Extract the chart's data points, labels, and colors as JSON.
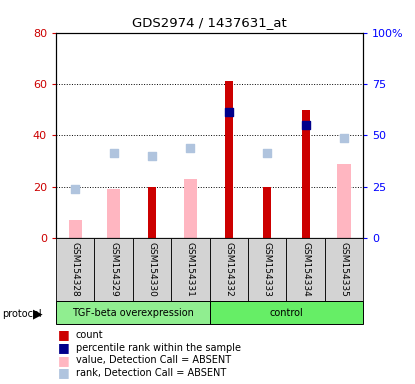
{
  "title": "GDS2974 / 1437631_at",
  "samples": [
    "GSM154328",
    "GSM154329",
    "GSM154330",
    "GSM154331",
    "GSM154332",
    "GSM154333",
    "GSM154334",
    "GSM154335"
  ],
  "red_bars": [
    null,
    null,
    20,
    null,
    61,
    20,
    50,
    null
  ],
  "pink_bars": [
    7,
    19,
    null,
    23,
    null,
    null,
    null,
    29
  ],
  "blue_squares": [
    null,
    null,
    null,
    null,
    49,
    null,
    44,
    null
  ],
  "light_blue_squares": [
    19,
    33,
    32,
    35,
    null,
    33,
    null,
    39
  ],
  "left_ylim": [
    0,
    80
  ],
  "right_ylim": [
    0,
    100
  ],
  "left_yticks": [
    0,
    20,
    40,
    60,
    80
  ],
  "right_yticks": [
    0,
    25,
    50,
    75,
    100
  ],
  "left_yticklabels": [
    "0",
    "20",
    "40",
    "60",
    "80"
  ],
  "right_yticklabels": [
    "0",
    "25",
    "50",
    "75",
    "100%"
  ],
  "bar_width": 0.35,
  "square_size": 40,
  "color_red": "#CC0000",
  "color_pink": "#FFB6C1",
  "color_blue": "#00008B",
  "color_lblue": "#B0C4DE",
  "color_tgf": "#90EE90",
  "color_ctrl": "#66EE66",
  "color_gray": "#D3D3D3",
  "legend_labels": [
    "count",
    "percentile rank within the sample",
    "value, Detection Call = ABSENT",
    "rank, Detection Call = ABSENT"
  ],
  "group1_label": "TGF-beta overexpression",
  "group2_label": "control"
}
